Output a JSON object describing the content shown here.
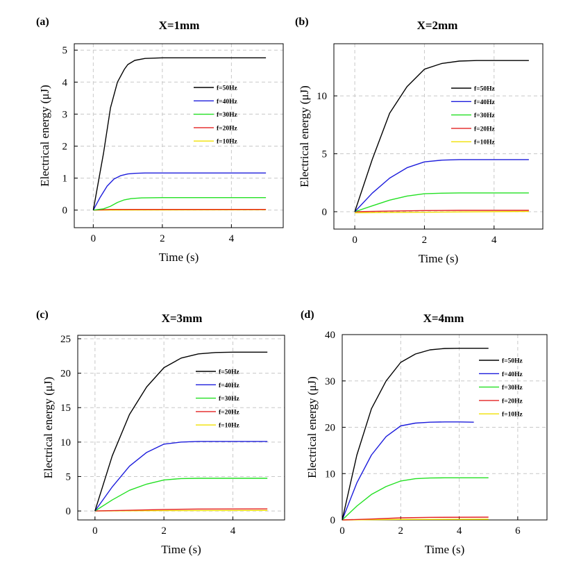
{
  "chart_data": [
    {
      "panel": "(a)",
      "type": "line",
      "title": "X=1mm",
      "xlabel": "Time (s)",
      "ylabel": "Electrical energy (μJ)",
      "xlim": [
        -0.55,
        5.5
      ],
      "ylim": [
        -0.55,
        5.2
      ],
      "xticks": [
        0,
        2,
        4
      ],
      "yticks": [
        0,
        1,
        2,
        3,
        4,
        5
      ],
      "grid": true,
      "legend_position": "right",
      "series": [
        {
          "name": "f=50Hz",
          "color": "#000000",
          "x": [
            0,
            0.3,
            0.5,
            0.7,
            0.9,
            1.0,
            1.2,
            1.5,
            2,
            3,
            4,
            5
          ],
          "y": [
            0,
            1.8,
            3.2,
            4.0,
            4.4,
            4.55,
            4.68,
            4.74,
            4.76,
            4.76,
            4.76,
            4.76
          ]
        },
        {
          "name": "f=40Hz",
          "color": "#1c1cdc",
          "x": [
            0,
            0.2,
            0.4,
            0.6,
            0.8,
            1.0,
            1.2,
            1.5,
            2,
            3,
            4,
            5
          ],
          "y": [
            0,
            0.4,
            0.75,
            0.97,
            1.08,
            1.13,
            1.15,
            1.16,
            1.16,
            1.16,
            1.16,
            1.16
          ]
        },
        {
          "name": "f=30Hz",
          "color": "#22e022",
          "x": [
            0,
            0.3,
            0.5,
            0.7,
            0.9,
            1.1,
            1.4,
            2,
            3,
            4,
            5
          ],
          "y": [
            0,
            0.04,
            0.12,
            0.24,
            0.32,
            0.36,
            0.38,
            0.39,
            0.39,
            0.39,
            0.39
          ]
        },
        {
          "name": "f=20Hz",
          "color": "#e42020",
          "x": [
            0,
            0.5,
            5
          ],
          "y": [
            0,
            0.02,
            0.02
          ]
        },
        {
          "name": "f=10Hz",
          "color": "#f0e000",
          "x": [
            0,
            5
          ],
          "y": [
            0,
            0.01
          ]
        }
      ]
    },
    {
      "panel": "(b)",
      "type": "line",
      "title": "X=2mm",
      "xlabel": "Time (s)",
      "ylabel": "Electrical energy (μJ)",
      "xlim": [
        -0.6,
        5.4
      ],
      "ylim": [
        -1.5,
        14.5
      ],
      "xticks": [
        0,
        2,
        4
      ],
      "yticks": [
        0,
        5,
        10
      ],
      "grid": true,
      "legend_position": "right",
      "series": [
        {
          "name": "f=50Hz",
          "color": "#000000",
          "x": [
            0,
            0.5,
            1.0,
            1.5,
            2.0,
            2.5,
            3.0,
            3.5,
            4,
            5
          ],
          "y": [
            0,
            4.5,
            8.5,
            10.8,
            12.3,
            12.8,
            13.0,
            13.05,
            13.05,
            13.05
          ]
        },
        {
          "name": "f=40Hz",
          "color": "#1c1cdc",
          "x": [
            0,
            0.5,
            1.0,
            1.5,
            2.0,
            2.5,
            3,
            4,
            5
          ],
          "y": [
            0,
            1.6,
            2.9,
            3.8,
            4.3,
            4.45,
            4.5,
            4.5,
            4.5
          ]
        },
        {
          "name": "f=30Hz",
          "color": "#22e022",
          "x": [
            0,
            0.5,
            1.0,
            1.5,
            2.0,
            2.5,
            3,
            4,
            5
          ],
          "y": [
            0,
            0.5,
            1.0,
            1.35,
            1.55,
            1.6,
            1.62,
            1.62,
            1.62
          ]
        },
        {
          "name": "f=20Hz",
          "color": "#e42020",
          "x": [
            0,
            1,
            2,
            3,
            5
          ],
          "y": [
            0,
            0.05,
            0.1,
            0.12,
            0.12
          ]
        },
        {
          "name": "f=10Hz",
          "color": "#f0e000",
          "x": [
            0,
            5
          ],
          "y": [
            -0.1,
            0.03
          ]
        }
      ]
    },
    {
      "panel": "(c)",
      "type": "line",
      "title": "X=3mm",
      "xlabel": "Time (s)",
      "ylabel": "Electrical energy (μJ)",
      "xlim": [
        -0.5,
        5.5
      ],
      "ylim": [
        -1.3,
        25.5
      ],
      "xticks": [
        0,
        2,
        4
      ],
      "yticks": [
        0,
        5,
        10,
        15,
        20,
        25
      ],
      "grid": true,
      "legend_position": "right",
      "series": [
        {
          "name": "f=50Hz",
          "color": "#000000",
          "x": [
            0,
            0.5,
            1.0,
            1.5,
            2.0,
            2.5,
            3.0,
            3.5,
            4,
            5
          ],
          "y": [
            0,
            8,
            14,
            18,
            20.8,
            22.2,
            22.8,
            23.0,
            23.05,
            23.05
          ]
        },
        {
          "name": "f=40Hz",
          "color": "#1c1cdc",
          "x": [
            0,
            0.5,
            1.0,
            1.5,
            2.0,
            2.5,
            3.0,
            4,
            5
          ],
          "y": [
            0,
            3.5,
            6.5,
            8.5,
            9.7,
            10.0,
            10.1,
            10.1,
            10.1
          ]
        },
        {
          "name": "f=30Hz",
          "color": "#22e022",
          "x": [
            0,
            0.5,
            1.0,
            1.5,
            2.0,
            2.5,
            3,
            4,
            5
          ],
          "y": [
            0,
            1.6,
            3.0,
            3.9,
            4.5,
            4.7,
            4.75,
            4.75,
            4.75
          ]
        },
        {
          "name": "f=20Hz",
          "color": "#e42020",
          "x": [
            0,
            1,
            2,
            3,
            5
          ],
          "y": [
            0,
            0.1,
            0.22,
            0.28,
            0.3
          ]
        },
        {
          "name": "f=10Hz",
          "color": "#f0e000",
          "x": [
            0,
            2,
            5
          ],
          "y": [
            0,
            0.05,
            0.08
          ]
        }
      ]
    },
    {
      "panel": "(d)",
      "type": "line",
      "title": "X=4mm",
      "xlabel": "Time (s)",
      "ylabel": "Electrical energy (μJ)",
      "xlim": [
        0,
        7
      ],
      "ylim": [
        0,
        40
      ],
      "xticks": [
        0,
        2,
        4,
        6
      ],
      "yticks": [
        0,
        10,
        20,
        30,
        40
      ],
      "grid": true,
      "legend_position": "right",
      "series": [
        {
          "name": "f=50Hz",
          "color": "#000000",
          "x": [
            0,
            0.5,
            1.0,
            1.5,
            2.0,
            2.5,
            3.0,
            3.5,
            4,
            5
          ],
          "y": [
            0,
            14,
            24,
            30,
            34,
            35.8,
            36.7,
            37,
            37.05,
            37.05
          ]
        },
        {
          "name": "f=40Hz",
          "color": "#1c1cdc",
          "x": [
            0,
            0.5,
            1.0,
            1.5,
            2.0,
            2.5,
            3.0,
            3.5,
            4,
            4.5
          ],
          "y": [
            0,
            8,
            14,
            18,
            20.3,
            20.9,
            21.1,
            21.15,
            21.15,
            21.1
          ]
        },
        {
          "name": "f=30Hz",
          "color": "#22e022",
          "x": [
            0,
            0.5,
            1.0,
            1.5,
            2.0,
            2.5,
            3.0,
            3.5,
            4,
            5
          ],
          "y": [
            0,
            3,
            5.5,
            7.2,
            8.4,
            8.9,
            9.05,
            9.1,
            9.1,
            9.1
          ]
        },
        {
          "name": "f=20Hz",
          "color": "#e42020",
          "x": [
            0,
            1,
            2,
            3,
            5
          ],
          "y": [
            0,
            0.2,
            0.45,
            0.55,
            0.6
          ]
        },
        {
          "name": "f=10Hz",
          "color": "#f0e000",
          "x": [
            0,
            2,
            5
          ],
          "y": [
            0,
            0.1,
            0.15
          ]
        }
      ]
    }
  ]
}
